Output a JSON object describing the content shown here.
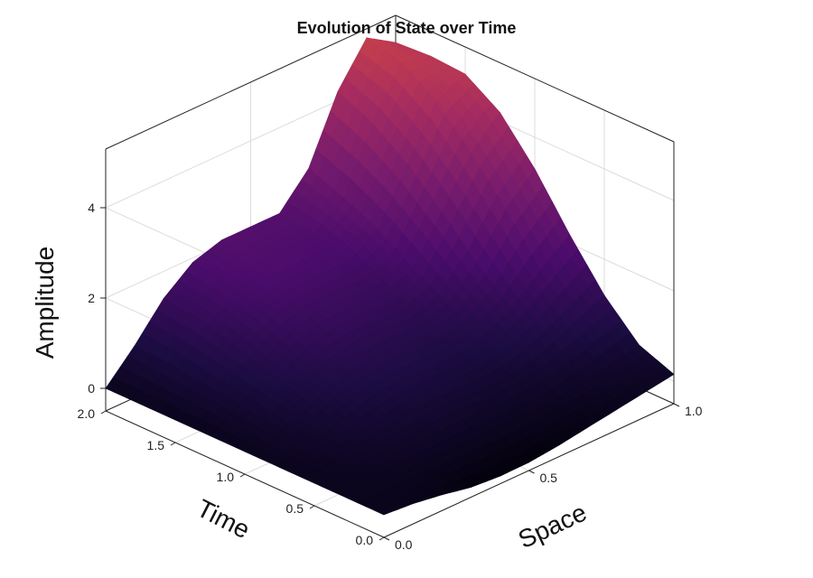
{
  "chart_data": {
    "type": "surface3d",
    "title": "Evolution of State over Time",
    "xlabel": "Space",
    "ylabel": "Time",
    "zlabel": "Amplitude",
    "xlim": [
      0.0,
      1.0
    ],
    "ylim": [
      0.0,
      2.0
    ],
    "zlim": [
      -0.5,
      5.3
    ],
    "x_ticks": [
      "0.0",
      "0.5",
      "1.0"
    ],
    "x_tick_values": [
      0.0,
      0.5,
      1.0
    ],
    "y_ticks": [
      "0.0",
      "0.5",
      "1.0",
      "1.5",
      "2.0"
    ],
    "y_tick_values": [
      0.0,
      0.5,
      1.0,
      1.5,
      2.0
    ],
    "z_ticks": [
      "0",
      "2",
      "4"
    ],
    "z_tick_values": [
      0,
      2,
      4
    ],
    "grid": true,
    "colormap": [
      "#000004",
      "#1b0c41",
      "#4a0c6b",
      "#781c6d",
      "#a52c60",
      "#cf4446",
      "#ed6925",
      "#fb9b06",
      "#f7d13d"
    ],
    "surface": {
      "x": [
        0.0,
        0.1,
        0.2,
        0.3,
        0.4,
        0.5,
        0.6,
        0.7,
        0.8,
        0.9,
        1.0
      ],
      "time": [
        0.0,
        0.25,
        0.5,
        0.75,
        1.0,
        1.25,
        1.5,
        1.75,
        2.0
      ],
      "amplitude": [
        [
          0.0,
          -0.05,
          -0.15,
          -0.28,
          -0.33,
          -0.32,
          -0.25,
          -0.15,
          -0.05,
          0.05,
          0.15
        ],
        [
          0.0,
          0.03,
          0.06,
          0.08,
          0.08,
          0.07,
          0.07,
          0.1,
          0.18,
          0.3,
          0.45
        ],
        [
          0.0,
          0.1,
          0.22,
          0.32,
          0.38,
          0.38,
          0.36,
          0.42,
          0.6,
          0.9,
          1.2
        ],
        [
          0.0,
          0.18,
          0.4,
          0.6,
          0.7,
          0.7,
          0.67,
          0.8,
          1.15,
          1.7,
          2.2
        ],
        [
          0.0,
          0.28,
          0.6,
          0.9,
          1.05,
          1.05,
          1.0,
          1.2,
          1.8,
          2.7,
          3.3
        ],
        [
          0.0,
          0.4,
          0.85,
          1.2,
          1.4,
          1.4,
          1.35,
          1.65,
          2.6,
          3.6,
          4.2
        ],
        [
          0.0,
          0.5,
          1.1,
          1.55,
          1.75,
          1.75,
          1.72,
          2.15,
          3.3,
          4.4,
          4.7
        ],
        [
          0.0,
          0.6,
          1.3,
          1.8,
          2.0,
          2.0,
          2.0,
          2.5,
          3.85,
          4.9,
          4.75
        ],
        [
          0.0,
          0.65,
          1.4,
          1.9,
          2.1,
          2.1,
          2.1,
          2.8,
          4.2,
          5.1,
          4.7
        ]
      ]
    }
  }
}
